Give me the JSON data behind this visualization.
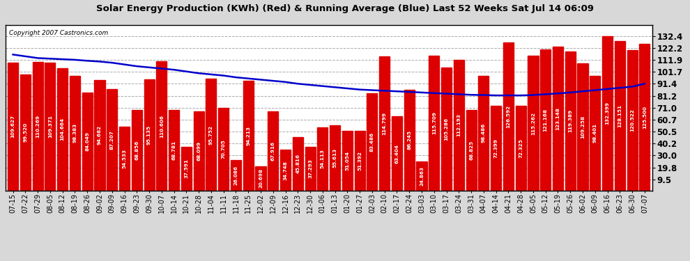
{
  "title": "Solar Energy Production (KWh) (Red) & Running Average (Blue) Last 52 Weeks Sat Jul 14 06:09",
  "copyright": "Copyright 2007 Castronics.com",
  "bar_color": "#dd0000",
  "line_color": "#0000cc",
  "bg_color": "#d8d8d8",
  "plot_bg_color": "#ffffff",
  "yticks_right": [
    9.5,
    19.8,
    30.0,
    40.2,
    50.5,
    60.7,
    71.0,
    81.2,
    91.4,
    101.7,
    111.9,
    122.2,
    132.4
  ],
  "ymax": 142.0,
  "categories": [
    "07-15",
    "07-22",
    "07-29",
    "08-05",
    "08-12",
    "08-19",
    "08-26",
    "09-02",
    "09-09",
    "09-16",
    "09-23",
    "09-30",
    "10-07",
    "10-14",
    "10-21",
    "10-28",
    "11-04",
    "11-11",
    "11-18",
    "11-25",
    "12-02",
    "12-09",
    "12-16",
    "12-23",
    "12-30",
    "01-06",
    "01-13",
    "01-20",
    "01-27",
    "02-03",
    "02-10",
    "02-17",
    "02-24",
    "03-03",
    "03-10",
    "03-17",
    "03-24",
    "03-31",
    "04-07",
    "04-14",
    "04-21",
    "04-28",
    "05-05",
    "05-12",
    "05-19",
    "05-26",
    "06-02",
    "06-09",
    "06-16",
    "06-23",
    "06-30",
    "07-07"
  ],
  "values": [
    109.627,
    99.52,
    110.269,
    109.371,
    104.664,
    98.383,
    84.049,
    94.682,
    87.207,
    54.533,
    68.856,
    95.135,
    110.606,
    68.781,
    37.591,
    68.099,
    95.752,
    70.705,
    26.086,
    94.213,
    20.698,
    67.916,
    34.748,
    45.816,
    37.293,
    54.113,
    55.613,
    51.054,
    51.392,
    83.486,
    114.799,
    63.404,
    86.245,
    24.863,
    115.709,
    105.286,
    112.193,
    68.825,
    98.486,
    72.399,
    126.592,
    72.325,
    115.262,
    121.168,
    123.148,
    119.389,
    109.258,
    98.401,
    132.399,
    128.151,
    120.522,
    125.5
  ],
  "running_avg": [
    116.5,
    115.0,
    113.5,
    113.0,
    112.5,
    112.0,
    111.2,
    110.5,
    109.5,
    108.0,
    106.5,
    105.5,
    104.5,
    103.5,
    102.0,
    100.5,
    99.5,
    98.5,
    97.0,
    96.0,
    95.0,
    94.0,
    93.0,
    91.5,
    90.5,
    89.5,
    88.5,
    87.5,
    86.5,
    86.0,
    85.5,
    85.0,
    84.5,
    84.0,
    83.5,
    83.0,
    82.5,
    82.0,
    81.8,
    81.5,
    81.5,
    81.5,
    81.8,
    82.5,
    83.2,
    84.0,
    85.0,
    86.0,
    87.0,
    88.0,
    89.0,
    91.5
  ]
}
